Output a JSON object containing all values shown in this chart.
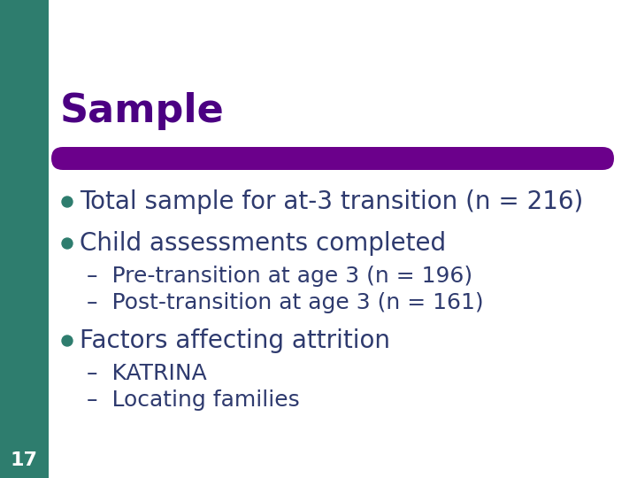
{
  "title": "Sample",
  "title_color": "#4B0082",
  "title_fontsize": 32,
  "title_bold": true,
  "bg_color": "#FFFFFF",
  "left_bar_color": "#2E7D6E",
  "top_bar_color": "#2E7D6E",
  "divider_color": "#6B008B",
  "bullet_color": "#2E7D6E",
  "text_color": "#2E3A6E",
  "bullet_points": [
    {
      "level": 1,
      "text": "Total sample for at-3 transition (n = 216)",
      "fontsize": 20
    },
    {
      "level": 1,
      "text": "Child assessments completed",
      "fontsize": 20
    },
    {
      "level": 2,
      "text": "Pre-transition at age 3 (n = 196)",
      "fontsize": 18
    },
    {
      "level": 2,
      "text": "Post-transition at age 3 (n = 161)",
      "fontsize": 18
    },
    {
      "level": 1,
      "text": "Factors affecting attrition",
      "fontsize": 20
    },
    {
      "level": 2,
      "text": "KATRINA",
      "fontsize": 18
    },
    {
      "level": 2,
      "text": "Locating families",
      "fontsize": 18
    }
  ],
  "slide_number": "17",
  "slide_number_color": "#FFFFFF",
  "y_positions": [
    305,
    258,
    222,
    192,
    148,
    112,
    82
  ]
}
